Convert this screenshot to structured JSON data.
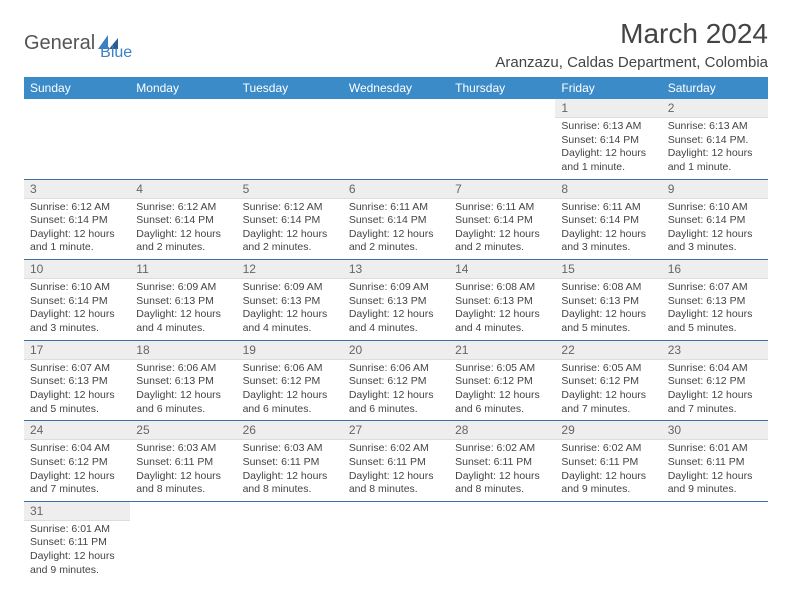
{
  "logo": {
    "part1": "General",
    "part2": "Blue"
  },
  "title": "March 2024",
  "subtitle": "Aranzazu, Caldas Department, Colombia",
  "colors": {
    "header_bg": "#3b8bc9",
    "header_text": "#ffffff",
    "row_divider": "#3b6fa8",
    "daynum_bg": "#eeeeee",
    "logo_accent": "#3b7fc4"
  },
  "weekdays": [
    "Sunday",
    "Monday",
    "Tuesday",
    "Wednesday",
    "Thursday",
    "Friday",
    "Saturday"
  ],
  "weeks": [
    [
      null,
      null,
      null,
      null,
      null,
      {
        "n": "1",
        "sr": "Sunrise: 6:13 AM",
        "ss": "Sunset: 6:14 PM",
        "dl": "Daylight: 12 hours and 1 minute."
      },
      {
        "n": "2",
        "sr": "Sunrise: 6:13 AM",
        "ss": "Sunset: 6:14 PM.",
        "dl": "Daylight: 12 hours and 1 minute."
      }
    ],
    [
      {
        "n": "3",
        "sr": "Sunrise: 6:12 AM",
        "ss": "Sunset: 6:14 PM",
        "dl": "Daylight: 12 hours and 1 minute."
      },
      {
        "n": "4",
        "sr": "Sunrise: 6:12 AM",
        "ss": "Sunset: 6:14 PM",
        "dl": "Daylight: 12 hours and 2 minutes."
      },
      {
        "n": "5",
        "sr": "Sunrise: 6:12 AM",
        "ss": "Sunset: 6:14 PM",
        "dl": "Daylight: 12 hours and 2 minutes."
      },
      {
        "n": "6",
        "sr": "Sunrise: 6:11 AM",
        "ss": "Sunset: 6:14 PM",
        "dl": "Daylight: 12 hours and 2 minutes."
      },
      {
        "n": "7",
        "sr": "Sunrise: 6:11 AM",
        "ss": "Sunset: 6:14 PM",
        "dl": "Daylight: 12 hours and 2 minutes."
      },
      {
        "n": "8",
        "sr": "Sunrise: 6:11 AM",
        "ss": "Sunset: 6:14 PM",
        "dl": "Daylight: 12 hours and 3 minutes."
      },
      {
        "n": "9",
        "sr": "Sunrise: 6:10 AM",
        "ss": "Sunset: 6:14 PM",
        "dl": "Daylight: 12 hours and 3 minutes."
      }
    ],
    [
      {
        "n": "10",
        "sr": "Sunrise: 6:10 AM",
        "ss": "Sunset: 6:14 PM",
        "dl": "Daylight: 12 hours and 3 minutes."
      },
      {
        "n": "11",
        "sr": "Sunrise: 6:09 AM",
        "ss": "Sunset: 6:13 PM",
        "dl": "Daylight: 12 hours and 4 minutes."
      },
      {
        "n": "12",
        "sr": "Sunrise: 6:09 AM",
        "ss": "Sunset: 6:13 PM",
        "dl": "Daylight: 12 hours and 4 minutes."
      },
      {
        "n": "13",
        "sr": "Sunrise: 6:09 AM",
        "ss": "Sunset: 6:13 PM",
        "dl": "Daylight: 12 hours and 4 minutes."
      },
      {
        "n": "14",
        "sr": "Sunrise: 6:08 AM",
        "ss": "Sunset: 6:13 PM",
        "dl": "Daylight: 12 hours and 4 minutes."
      },
      {
        "n": "15",
        "sr": "Sunrise: 6:08 AM",
        "ss": "Sunset: 6:13 PM",
        "dl": "Daylight: 12 hours and 5 minutes."
      },
      {
        "n": "16",
        "sr": "Sunrise: 6:07 AM",
        "ss": "Sunset: 6:13 PM",
        "dl": "Daylight: 12 hours and 5 minutes."
      }
    ],
    [
      {
        "n": "17",
        "sr": "Sunrise: 6:07 AM",
        "ss": "Sunset: 6:13 PM",
        "dl": "Daylight: 12 hours and 5 minutes."
      },
      {
        "n": "18",
        "sr": "Sunrise: 6:06 AM",
        "ss": "Sunset: 6:13 PM",
        "dl": "Daylight: 12 hours and 6 minutes."
      },
      {
        "n": "19",
        "sr": "Sunrise: 6:06 AM",
        "ss": "Sunset: 6:12 PM",
        "dl": "Daylight: 12 hours and 6 minutes."
      },
      {
        "n": "20",
        "sr": "Sunrise: 6:06 AM",
        "ss": "Sunset: 6:12 PM",
        "dl": "Daylight: 12 hours and 6 minutes."
      },
      {
        "n": "21",
        "sr": "Sunrise: 6:05 AM",
        "ss": "Sunset: 6:12 PM",
        "dl": "Daylight: 12 hours and 6 minutes."
      },
      {
        "n": "22",
        "sr": "Sunrise: 6:05 AM",
        "ss": "Sunset: 6:12 PM",
        "dl": "Daylight: 12 hours and 7 minutes."
      },
      {
        "n": "23",
        "sr": "Sunrise: 6:04 AM",
        "ss": "Sunset: 6:12 PM",
        "dl": "Daylight: 12 hours and 7 minutes."
      }
    ],
    [
      {
        "n": "24",
        "sr": "Sunrise: 6:04 AM",
        "ss": "Sunset: 6:12 PM",
        "dl": "Daylight: 12 hours and 7 minutes."
      },
      {
        "n": "25",
        "sr": "Sunrise: 6:03 AM",
        "ss": "Sunset: 6:11 PM",
        "dl": "Daylight: 12 hours and 8 minutes."
      },
      {
        "n": "26",
        "sr": "Sunrise: 6:03 AM",
        "ss": "Sunset: 6:11 PM",
        "dl": "Daylight: 12 hours and 8 minutes."
      },
      {
        "n": "27",
        "sr": "Sunrise: 6:02 AM",
        "ss": "Sunset: 6:11 PM",
        "dl": "Daylight: 12 hours and 8 minutes."
      },
      {
        "n": "28",
        "sr": "Sunrise: 6:02 AM",
        "ss": "Sunset: 6:11 PM",
        "dl": "Daylight: 12 hours and 8 minutes."
      },
      {
        "n": "29",
        "sr": "Sunrise: 6:02 AM",
        "ss": "Sunset: 6:11 PM",
        "dl": "Daylight: 12 hours and 9 minutes."
      },
      {
        "n": "30",
        "sr": "Sunrise: 6:01 AM",
        "ss": "Sunset: 6:11 PM",
        "dl": "Daylight: 12 hours and 9 minutes."
      }
    ],
    [
      {
        "n": "31",
        "sr": "Sunrise: 6:01 AM",
        "ss": "Sunset: 6:11 PM",
        "dl": "Daylight: 12 hours and 9 minutes."
      },
      null,
      null,
      null,
      null,
      null,
      null
    ]
  ]
}
